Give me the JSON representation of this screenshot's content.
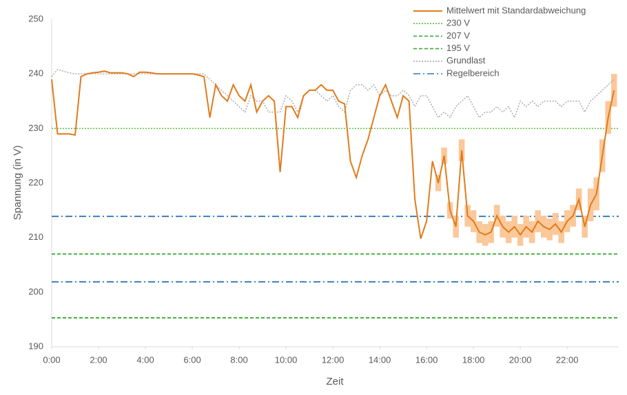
{
  "chart_data": {
    "type": "line",
    "ylabel": "Spannung (in V)",
    "xlabel": "Zeit",
    "xlim": [
      0,
      24.2
    ],
    "ylim": [
      190,
      250
    ],
    "yticks": [
      190,
      200,
      210,
      220,
      230,
      240,
      250
    ],
    "xticks": [
      {
        "value": 0,
        "label": "0:00"
      },
      {
        "value": 2,
        "label": "2:00"
      },
      {
        "value": 4,
        "label": "4:00"
      },
      {
        "value": 6,
        "label": "6:00"
      },
      {
        "value": 8,
        "label": "8:00"
      },
      {
        "value": 10,
        "label": "10:00"
      },
      {
        "value": 12,
        "label": "12:00"
      },
      {
        "value": 14,
        "label": "14:00"
      },
      {
        "value": 16,
        "label": "16:00"
      },
      {
        "value": 18,
        "label": "18:00"
      },
      {
        "value": 20,
        "label": "20:00"
      },
      {
        "value": 22,
        "label": "22:00"
      }
    ],
    "legend": "top-right",
    "x": [
      0,
      0.25,
      0.5,
      0.75,
      1,
      1.25,
      1.5,
      1.75,
      2,
      2.25,
      2.5,
      2.75,
      3,
      3.25,
      3.5,
      3.75,
      4,
      4.25,
      4.5,
      4.75,
      5,
      5.25,
      5.5,
      5.75,
      6,
      6.25,
      6.5,
      6.75,
      7,
      7.25,
      7.5,
      7.75,
      8,
      8.25,
      8.5,
      8.75,
      9,
      9.25,
      9.5,
      9.75,
      10,
      10.25,
      10.5,
      10.75,
      11,
      11.25,
      11.5,
      11.75,
      12,
      12.25,
      12.5,
      12.75,
      13,
      13.25,
      13.5,
      13.75,
      14,
      14.25,
      14.5,
      14.75,
      15,
      15.25,
      15.5,
      15.75,
      16,
      16.25,
      16.5,
      16.75,
      17,
      17.25,
      17.5,
      17.75,
      18,
      18.25,
      18.5,
      18.75,
      19,
      19.25,
      19.5,
      19.75,
      20,
      20.25,
      20.5,
      20.75,
      21,
      21.25,
      21.5,
      21.75,
      22,
      22.25,
      22.5,
      22.75,
      23,
      23.25,
      23.5,
      23.75,
      24
    ],
    "series": [
      {
        "name": "Mittelwert mit Standardabweichung",
        "color": "#e07b1a",
        "band_color": "#fbc89a",
        "values": [
          239,
          229,
          229,
          229,
          228.8,
          239.5,
          240,
          240.2,
          240.3,
          240.5,
          240.2,
          240.2,
          240.2,
          240,
          239.5,
          240.3,
          240.3,
          240.2,
          240,
          240,
          240,
          240,
          240,
          240,
          240,
          239.8,
          239.5,
          232,
          238,
          236,
          235,
          238,
          236,
          235,
          238,
          233,
          235,
          236,
          235,
          222,
          234,
          234,
          232,
          236,
          237,
          237,
          238,
          237,
          237,
          235,
          234.5,
          224,
          221,
          225,
          228,
          232,
          236,
          238,
          235,
          232,
          236,
          235,
          217,
          209.8,
          213,
          224,
          220,
          225,
          215,
          212,
          226,
          214,
          213,
          211,
          210.5,
          211,
          214,
          212,
          211,
          212,
          210.5,
          212,
          211,
          213,
          212,
          211.5,
          212.5,
          211,
          213,
          214,
          217,
          212,
          216,
          218,
          225,
          232,
          237
        ],
        "std": [
          0,
          0,
          0,
          0,
          0,
          0,
          0,
          0,
          0,
          0,
          0,
          0,
          0,
          0,
          0,
          0,
          0,
          0,
          0,
          0,
          0,
          0,
          0,
          0,
          0,
          0,
          0,
          0,
          0,
          0,
          0,
          0,
          0,
          0,
          0,
          0,
          0,
          0,
          0,
          0,
          0,
          0,
          0,
          0,
          0,
          0,
          0,
          0,
          0,
          0,
          0,
          0,
          0,
          0,
          0,
          0,
          0,
          0,
          0,
          0,
          0,
          0,
          0,
          0,
          0,
          0,
          1.5,
          1.5,
          1.5,
          2,
          2,
          2,
          2,
          2,
          2,
          2,
          2,
          2,
          2,
          2,
          2,
          2,
          2,
          2,
          2,
          2,
          2,
          2,
          2,
          2,
          2,
          2,
          3,
          3,
          3,
          3,
          3
        ]
      },
      {
        "name": "Grundlast",
        "color": "#aaaaaa",
        "dash": "dotted",
        "values": [
          239.5,
          240.8,
          240.5,
          240.2,
          240,
          240,
          240,
          240,
          240,
          240,
          240,
          240,
          240,
          240,
          240,
          240,
          240,
          240,
          240,
          240,
          240,
          240,
          240,
          240,
          240,
          240,
          240,
          239,
          238,
          237,
          236,
          235,
          234,
          233,
          236,
          235,
          235,
          233,
          233,
          233,
          236,
          235,
          233,
          236,
          237,
          237,
          236,
          235,
          236,
          234,
          233,
          237,
          238,
          238,
          237,
          238,
          236,
          237,
          236,
          236,
          237,
          236,
          234,
          236,
          236,
          234,
          232,
          233,
          232,
          234,
          235,
          236,
          234,
          232,
          233,
          233,
          234,
          233,
          234,
          232,
          235,
          234,
          235,
          234,
          235,
          235,
          235,
          234,
          235,
          235,
          235,
          233,
          235,
          236,
          237,
          238,
          239
        ]
      }
    ],
    "reference_lines": [
      {
        "name": "230 V",
        "color": "#5bbf3b",
        "dash": "dotted",
        "values": [
          230
        ]
      },
      {
        "name": "207 V",
        "color": "#3aaa35",
        "dash": "dashed",
        "values": [
          207
        ]
      },
      {
        "name": "195 V",
        "color": "#3aaa35",
        "dash": "dashed",
        "values": [
          195.3
        ]
      },
      {
        "name": "Regelbereich",
        "color": "#2e75b6",
        "dash": "dashdot",
        "values": [
          213.9,
          201.9
        ]
      }
    ]
  }
}
